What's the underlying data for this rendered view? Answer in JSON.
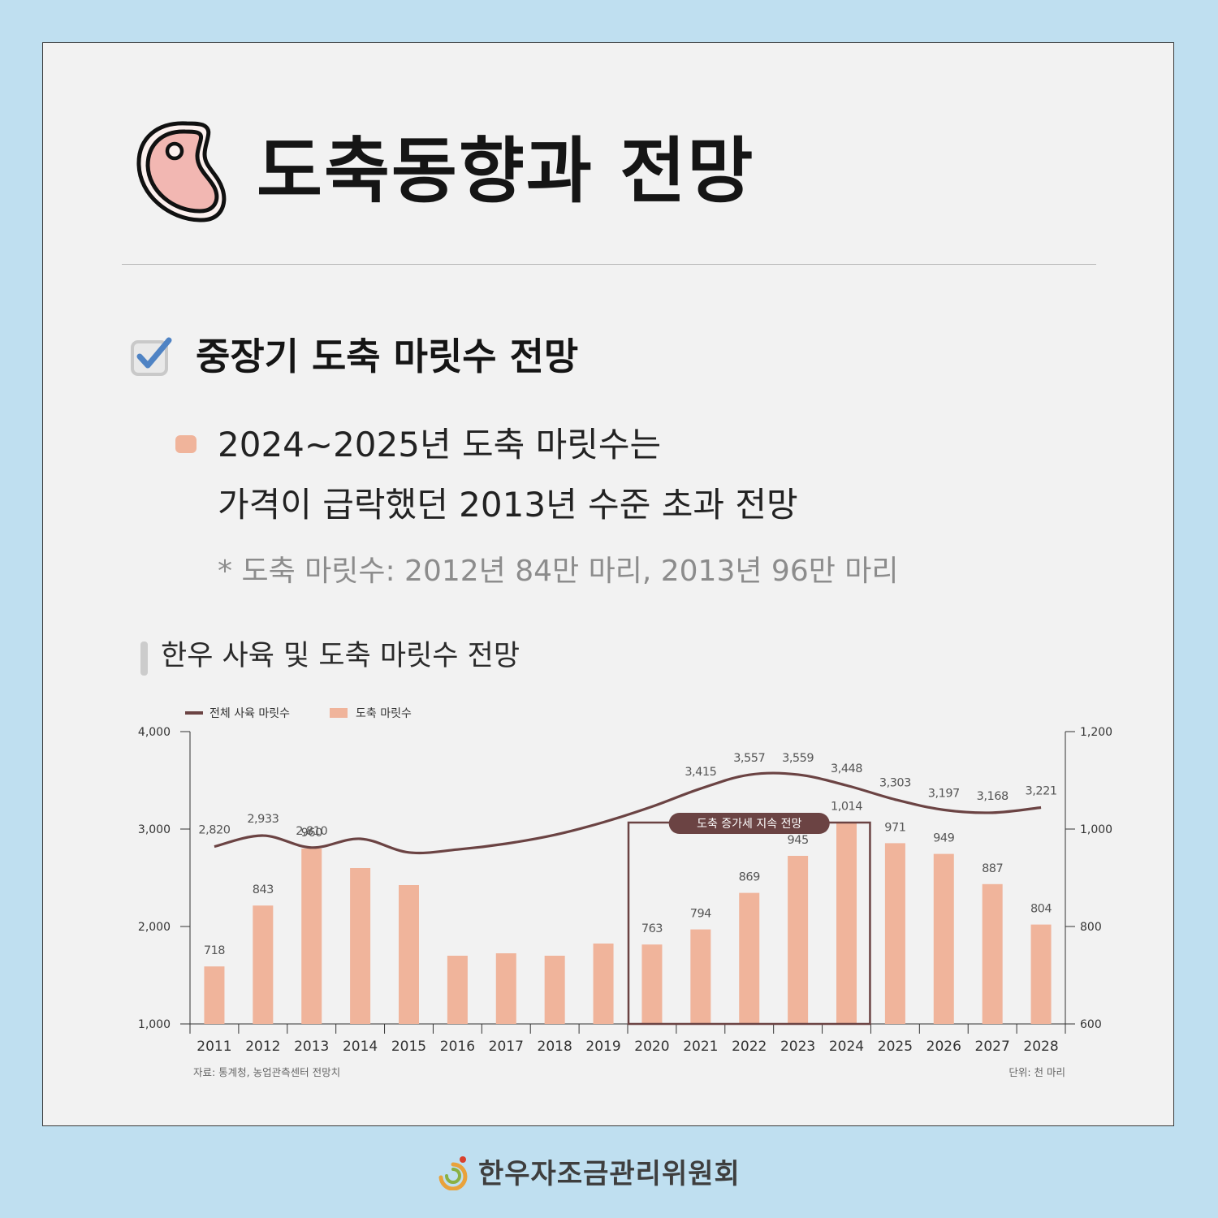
{
  "header": {
    "title": "도축동향과 전망",
    "icon": "meat-steak-icon"
  },
  "section": {
    "title": "중장기 도축 마릿수 전망",
    "icon": "checkbox-checked-icon"
  },
  "summary": {
    "line1": "2024~2025년 도축 마릿수는",
    "line2": "가격이 급락했던 2013년 수준 초과 전망",
    "note": "* 도축 마릿수: 2012년 84만 마리, 2013년 96만 마리"
  },
  "chart_title": "한우 사육 및 도축 마릿수 전망",
  "chart_data": {
    "type": "bar",
    "categories": [
      "2011",
      "2012",
      "2013",
      "2014",
      "2015",
      "2016",
      "2017",
      "2018",
      "2019",
      "2020",
      "2021",
      "2022",
      "2023",
      "2024",
      "2025",
      "2026",
      "2027",
      "2028"
    ],
    "series": [
      {
        "name": "도축 마릿수",
        "type": "bar",
        "axis": "right",
        "color": "#f0b49b",
        "values": [
          718,
          843,
          960,
          920,
          885,
          740,
          745,
          740,
          765,
          763,
          794,
          869,
          945,
          1014,
          971,
          949,
          887,
          804
        ],
        "labels": [
          "718",
          "843",
          "960",
          "",
          "",
          "",
          "",
          "",
          "",
          "763",
          "794",
          "869",
          "945",
          "1,014",
          "971",
          "949",
          "887",
          "804"
        ]
      },
      {
        "name": "전체 사육 마릿수",
        "type": "line",
        "axis": "left",
        "color": "#6b4343",
        "values": [
          2820,
          2933,
          2810,
          2900,
          2760,
          2790,
          2850,
          2940,
          3070,
          3230,
          3415,
          3557,
          3559,
          3448,
          3303,
          3197,
          3168,
          3221
        ],
        "labels": [
          "2,820",
          "2,933",
          "2,810",
          "",
          "",
          "",
          "",
          "",
          "",
          "",
          "3,415",
          "3,557",
          "3,559",
          "3,448",
          "3,303",
          "3,197",
          "3,168",
          "3,221"
        ]
      }
    ],
    "left_axis": {
      "ylim": [
        1000,
        4000
      ],
      "ticks": [
        1000,
        2000,
        3000,
        4000
      ],
      "tick_labels": [
        "1,000",
        "2,000",
        "3,000",
        "4,000"
      ]
    },
    "right_axis": {
      "ylim": [
        600,
        1200
      ],
      "ticks": [
        600,
        800,
        1000,
        1200
      ],
      "tick_labels": [
        "600",
        "800",
        "1,000",
        "1,200"
      ]
    },
    "legend_position": "top-left",
    "annotation": {
      "text": "도축 증가세 지속 전망",
      "from": "2020",
      "to": "2024"
    },
    "source": "자료: 통계청, 농업관측센터 전망치",
    "unit": "단위: 천 마리"
  },
  "footer": {
    "org_name": "한우자조금관리위원회",
    "logo": "hanwoo-logo-icon"
  }
}
